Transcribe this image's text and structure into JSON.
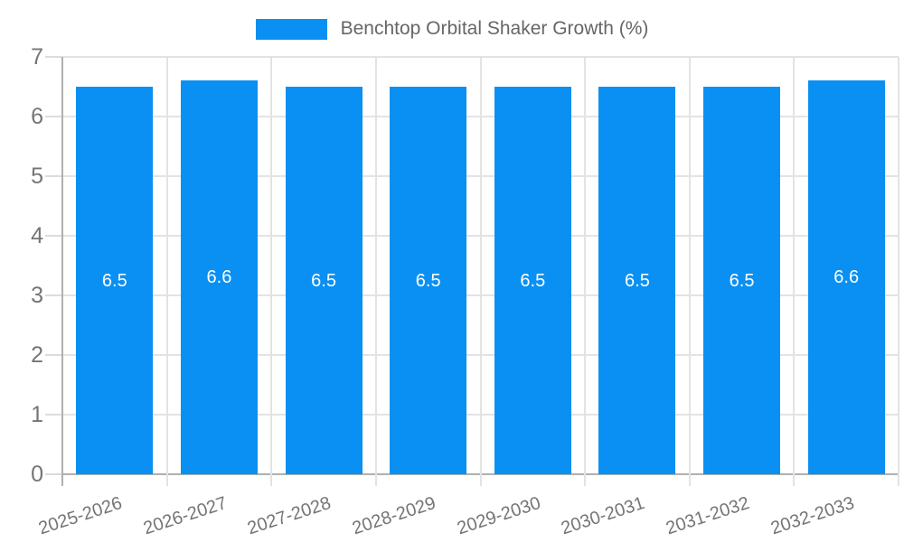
{
  "legend": {
    "label": "Benchtop Orbital Shaker Growth (%)"
  },
  "chart_data": {
    "type": "bar",
    "title": "Benchtop Orbital Shaker Growth (%)",
    "categories": [
      "2025-2026",
      "2026-2027",
      "2027-2028",
      "2028-2029",
      "2029-2030",
      "2030-2031",
      "2031-2032",
      "2032-2033"
    ],
    "values": [
      6.5,
      6.6,
      6.5,
      6.5,
      6.5,
      6.5,
      6.5,
      6.6
    ],
    "value_labels": [
      "6.5",
      "6.6",
      "6.5",
      "6.5",
      "6.5",
      "6.5",
      "6.5",
      "6.6"
    ],
    "xlabel": "",
    "ylabel": "",
    "ylim": [
      0,
      7
    ],
    "yticks": [
      0,
      1,
      2,
      3,
      4,
      5,
      6,
      7
    ],
    "grid": true,
    "legend_position": "top-center",
    "colors": {
      "bar": "#0a90f2",
      "value_label": "#ffffff",
      "gridline": "#e3e3e3",
      "tick": "#dcdcdc",
      "axis_line": "#b0b0b0",
      "axis_label": "#757575",
      "legend_text": "#666666",
      "background": "#ffffff"
    }
  }
}
